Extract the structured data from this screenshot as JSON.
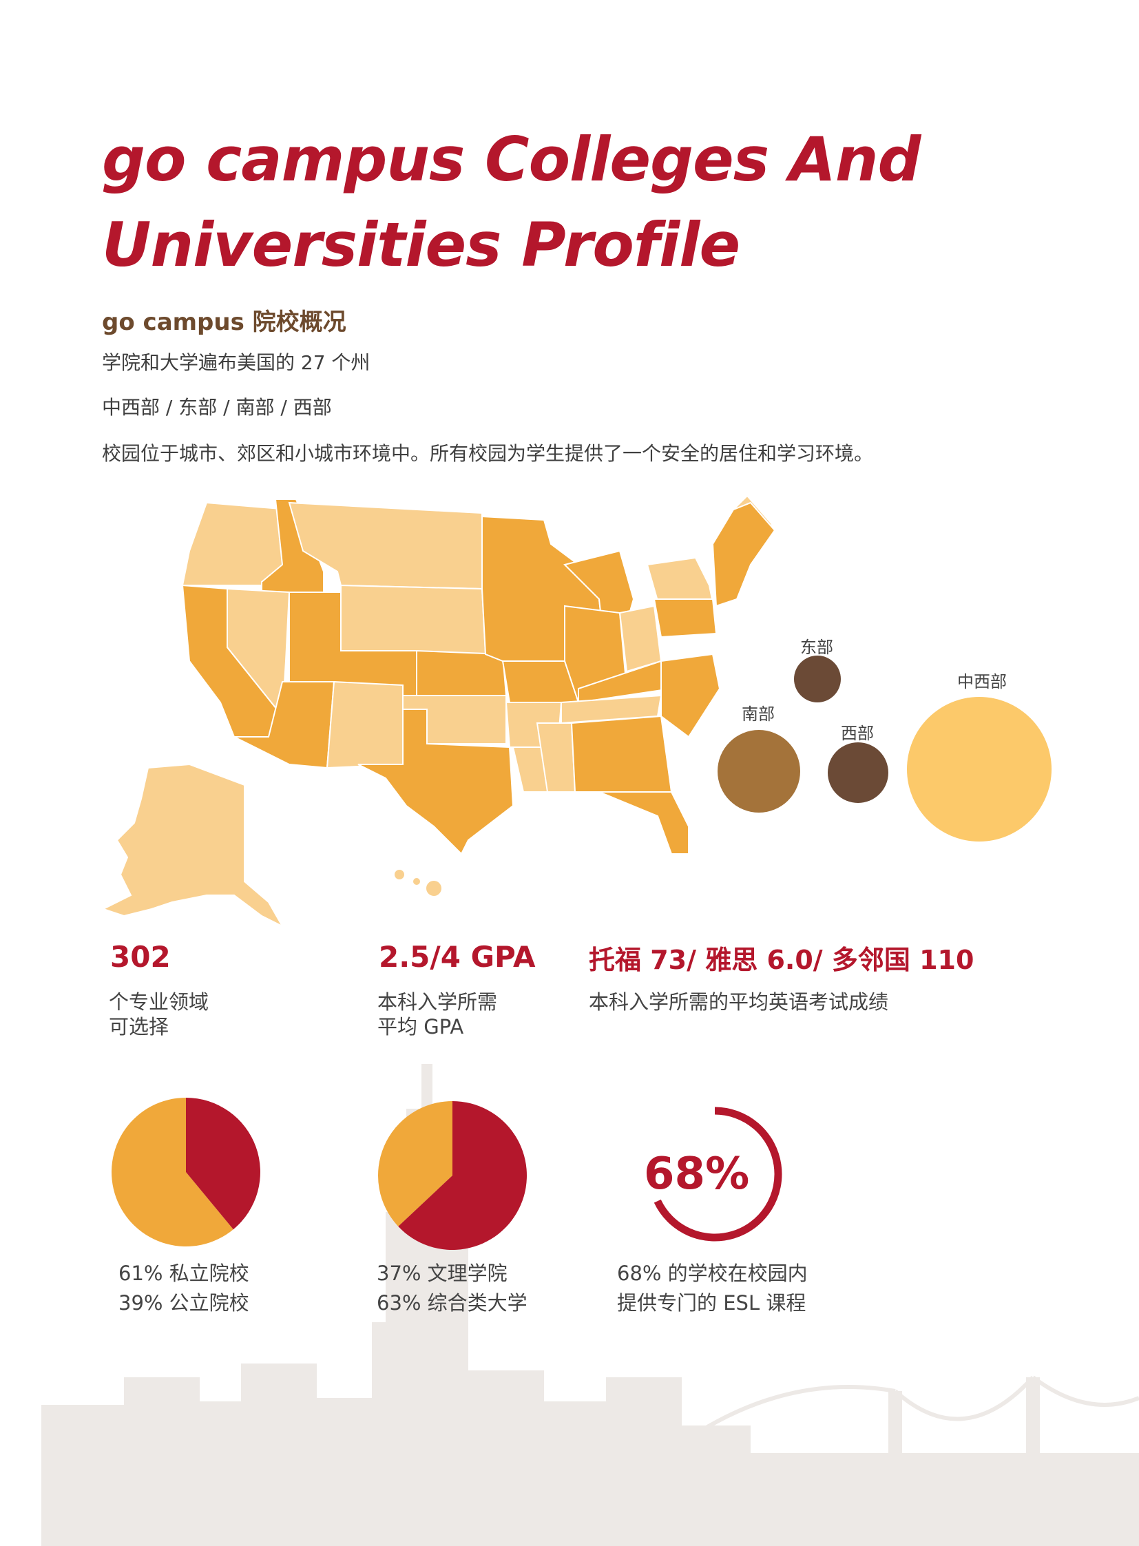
{
  "header": {
    "title_line1": "go campus Colleges And",
    "title_line2": "Universities Profile",
    "subtitle": "go campus 院校概况",
    "line1": "学院和大学遍布美国的 27 个州",
    "line2": "中西部 / 东部 / 南部 / 西部",
    "line3": "校园位于城市、郊区和小城市环境中。所有校园为学生提供了一个安全的居住和学习环境。"
  },
  "regions": {
    "east": "东部",
    "midwest": "中西部",
    "south": "南部",
    "west": "西部"
  },
  "stats": {
    "majors_value": "302",
    "majors_desc": "个专业领域\n可选择",
    "gpa_value": "2.5/4 GPA",
    "gpa_desc": "本科入学所需\n平均 GPA",
    "english_value": "托福 73/ 雅思 6.0/ 多邻国 110",
    "english_desc": "本科入学所需的平均英语考试成绩"
  },
  "charts": {
    "private_public_caption": "61% 私立院校\n39% 公立院校",
    "liberal_arts_caption": "37% 文理学院\n63% 综合类大学",
    "esl_percent": "68%",
    "esl_caption": "68% 的学校在校园内\n提供专门的 ESL 课程"
  },
  "chart_data": [
    {
      "type": "pie",
      "categories": [
        "私立院校",
        "公立院校"
      ],
      "values": [
        61,
        39
      ]
    },
    {
      "type": "pie",
      "categories": [
        "文理学院",
        "综合类大学"
      ],
      "values": [
        37,
        63
      ]
    },
    {
      "type": "pie",
      "categories": [
        "ESL"
      ],
      "values": [
        68
      ]
    }
  ],
  "colors": {
    "brand_red": "#b4172c",
    "orange": "#f0a83a",
    "light_orange": "#f9d08f",
    "brown": "#a4733a",
    "dark_brown": "#6b4a36",
    "pale_yellow": "#fcc96a",
    "skyline": "#ede9e6"
  }
}
